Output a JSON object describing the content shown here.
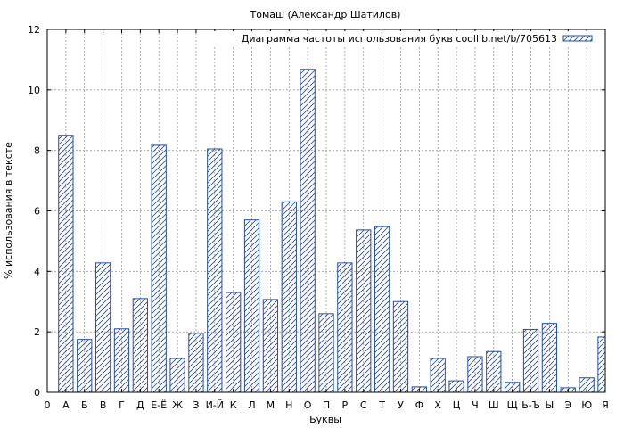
{
  "chart_data": {
    "type": "bar",
    "title": "Томаш (Александр Шатилов)",
    "xlabel": "Буквы",
    "ylabel": "% использования в тексте",
    "legend": {
      "label": "Диаграмма частоты использования букв coollib.net/b/705613",
      "placement": "top-right"
    },
    "ylim": [
      0,
      12
    ],
    "yticks": [
      0,
      2,
      4,
      6,
      8,
      10,
      12
    ],
    "grid": true,
    "x_origin_label": "0",
    "categories": [
      "А",
      "Б",
      "В",
      "Г",
      "Д",
      "Е-Ё",
      "Ж",
      "З",
      "И-Й",
      "К",
      "Л",
      "М",
      "Н",
      "О",
      "П",
      "Р",
      "С",
      "Т",
      "У",
      "Ф",
      "Х",
      "Ц",
      "Ч",
      "Ш",
      "Щ",
      "Ь-Ъ",
      "Ы",
      "Э",
      "Ю",
      "Я"
    ],
    "values": [
      8.5,
      1.75,
      4.28,
      2.1,
      3.1,
      8.17,
      1.12,
      1.95,
      8.05,
      3.3,
      5.7,
      3.07,
      6.3,
      10.68,
      2.6,
      4.28,
      5.37,
      5.48,
      3.0,
      0.18,
      1.12,
      0.38,
      1.18,
      1.35,
      0.33,
      2.08,
      2.28,
      0.15,
      0.48,
      1.83
    ]
  },
  "colors": {
    "bar_stroke": "#1f4fa8",
    "hatch": "#1f4fa8",
    "grid": "#999999",
    "frame": "#000000"
  }
}
